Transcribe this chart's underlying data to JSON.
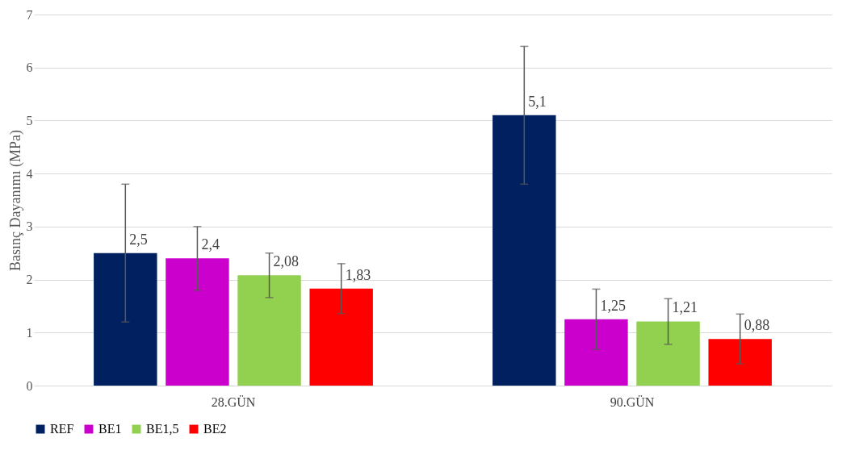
{
  "chart_data": {
    "type": "bar",
    "ylabel": "Basınç Dayanımı (MPa)",
    "categories": [
      "28.GÜN",
      "90.GÜN"
    ],
    "series": [
      {
        "name": "REF",
        "color": "#002060",
        "values": [
          2.5,
          5.1
        ],
        "errors": [
          1.3,
          1.3
        ],
        "value_labels": [
          "2,5",
          "5,1"
        ]
      },
      {
        "name": "BE1",
        "color": "#cc00cc",
        "values": [
          2.4,
          1.25
        ],
        "errors": [
          0.6,
          0.57
        ],
        "value_labels": [
          "2,4",
          "1,25"
        ]
      },
      {
        "name": "BE1,5",
        "color": "#92d050",
        "values": [
          2.08,
          1.21
        ],
        "errors": [
          0.42,
          0.43
        ],
        "value_labels": [
          "2,08",
          "1,21"
        ]
      },
      {
        "name": "BE2",
        "color": "#ff0000",
        "values": [
          1.83,
          0.88
        ],
        "errors": [
          0.47,
          0.47
        ],
        "value_labels": [
          "1,83",
          "0,88"
        ]
      }
    ],
    "ylim": [
      0,
      7
    ],
    "yticks": [
      0,
      1,
      2,
      3,
      4,
      5,
      6,
      7
    ],
    "grid": "y",
    "legend": "bottom"
  }
}
